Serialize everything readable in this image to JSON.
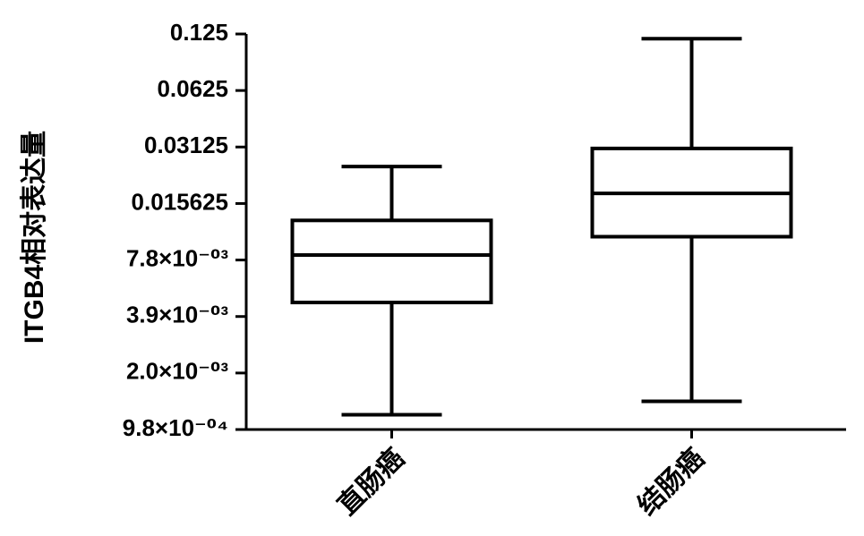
{
  "chart_data": {
    "type": "box",
    "y_label": "ITGB4相对表达量",
    "categories": [
      "直肠癌",
      "结肠癌"
    ],
    "min": [
      0.00117,
      0.00138
    ],
    "q1": [
      0.00464,
      0.0104
    ],
    "median": [
      0.0083,
      0.0177
    ],
    "q3": [
      0.0127,
      0.0307
    ],
    "max": [
      0.0246,
      0.118
    ],
    "color": "#000000",
    "log_scale": true,
    "log_base": 2,
    "ylim": [
      0.0009765625,
      0.125
    ],
    "yticks": [
      {
        "value": 0.0009765625,
        "label": "9.8×10⁻⁰⁴"
      },
      {
        "value": 0.001953125,
        "label": "2.0×10⁻⁰³"
      },
      {
        "value": 0.00390625,
        "label": "3.9×10⁻⁰³"
      },
      {
        "value": 0.0078125,
        "label": "7.8×10⁻⁰³"
      },
      0.015625,
      0.03125,
      0.0625,
      0.125
    ]
  }
}
